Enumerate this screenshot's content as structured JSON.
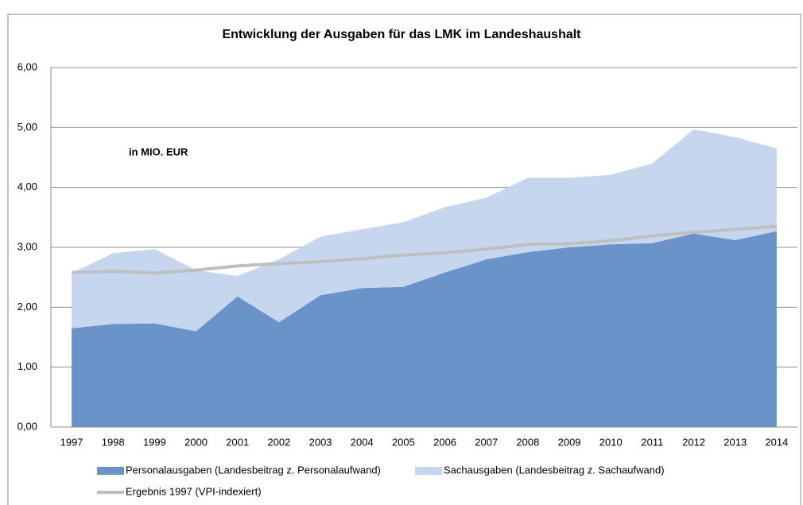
{
  "chart_data": {
    "type": "stacked_area",
    "title": "Entwicklung der Ausgaben für das LMK im Landeshaushalt",
    "annotation": "in MIO. EUR",
    "categories": [
      "1997",
      "1998",
      "1999",
      "2000",
      "2001",
      "2002",
      "2003",
      "2004",
      "2005",
      "2006",
      "2007",
      "2008",
      "2009",
      "2010",
      "2011",
      "2012",
      "2013",
      "2014"
    ],
    "series": [
      {
        "name": "Personalausgaben (Landesbeitrag z. Personalaufwand)",
        "color": "#6a93c9",
        "values": [
          1.65,
          1.72,
          1.73,
          1.6,
          2.18,
          1.75,
          2.2,
          2.32,
          2.34,
          2.58,
          2.8,
          2.92,
          3.0,
          3.05,
          3.07,
          3.23,
          3.12,
          3.27
        ]
      },
      {
        "name": "Sachausgaben (Landesbeitrag z. Sachaufwand)",
        "color": "#c5d6ee",
        "values": [
          0.92,
          1.18,
          1.24,
          1.02,
          0.34,
          1.05,
          0.98,
          0.98,
          1.08,
          1.09,
          1.03,
          1.24,
          1.16,
          1.16,
          1.33,
          1.74,
          1.72,
          1.38
        ]
      }
    ],
    "line": {
      "name": "Ergebnis 1997 (VPI-indexiert)",
      "color": "#bfbfbf",
      "values": [
        2.58,
        2.6,
        2.57,
        2.62,
        2.69,
        2.73,
        2.76,
        2.81,
        2.87,
        2.91,
        2.97,
        3.05,
        3.06,
        3.11,
        3.19,
        3.25,
        3.3,
        3.35
      ]
    },
    "ylim": [
      0,
      6
    ],
    "yticks": [
      {
        "value": 0,
        "label": "0,00"
      },
      {
        "value": 1,
        "label": "1,00"
      },
      {
        "value": 2,
        "label": "2,00"
      },
      {
        "value": 3,
        "label": "3,00"
      },
      {
        "value": 4,
        "label": "4,00"
      },
      {
        "value": 5,
        "label": "5,00"
      },
      {
        "value": 6,
        "label": "6,00"
      }
    ],
    "grid": true
  }
}
